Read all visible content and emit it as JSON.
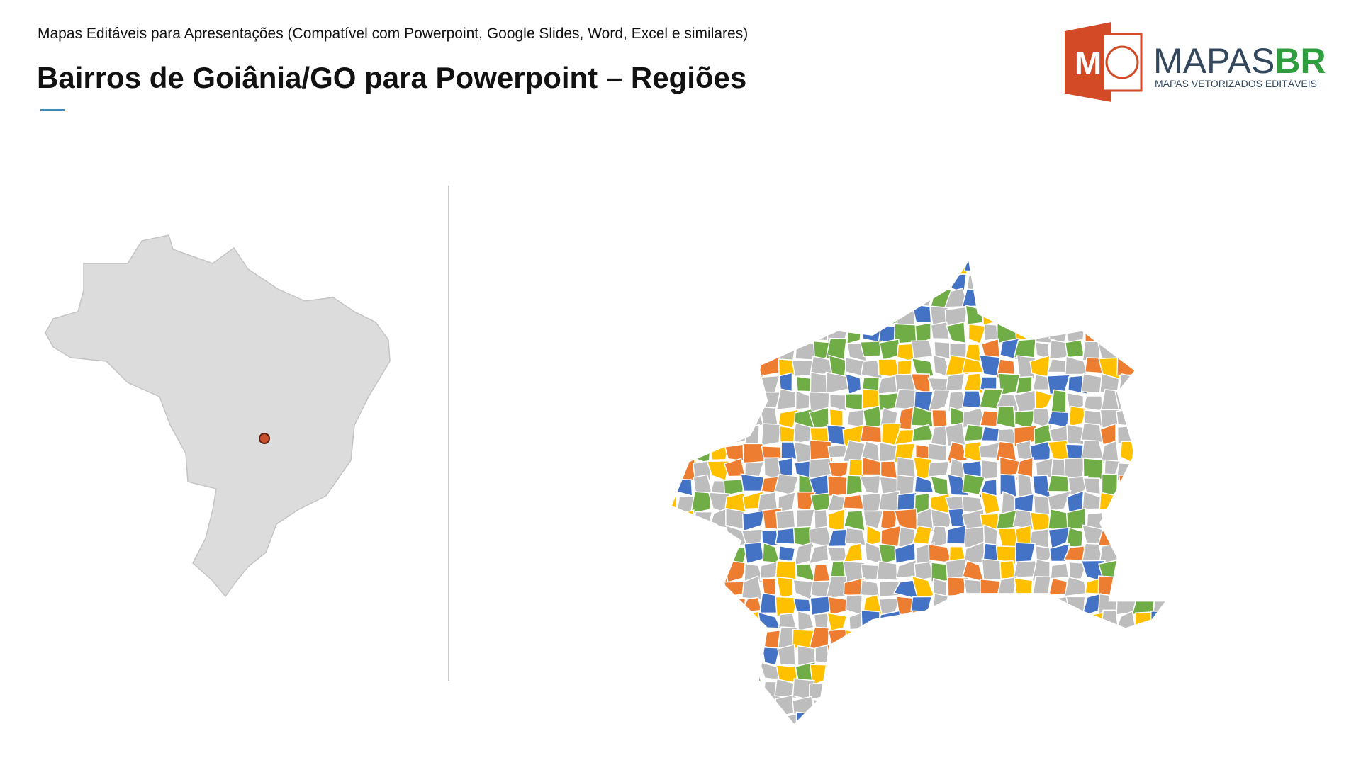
{
  "header": {
    "subtitle": "Mapas Editáveis para Apresentações (Compatível com Powerpoint, Google Slides, Word, Excel e similares)",
    "title": "Bairros de Goiânia/GO para Powerpoint – Regiões"
  },
  "logo": {
    "icon_letter": "M",
    "brand_main": "MAPAS",
    "brand_accent": "BR",
    "tagline": "MAPAS VETORIZADOS EDITÁVEIS"
  }
}
